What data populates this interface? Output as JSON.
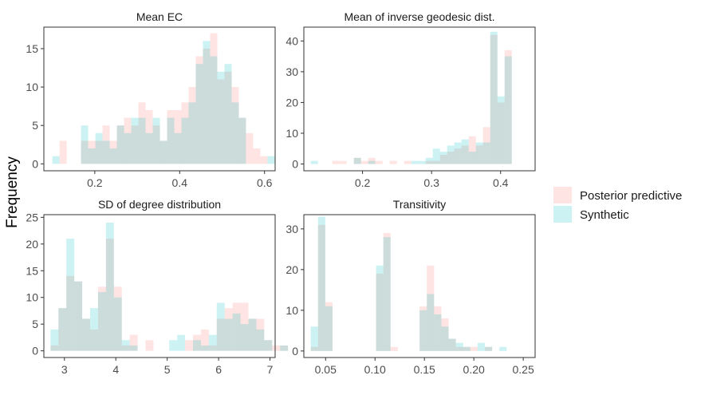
{
  "chart_data": {
    "type": "histogram",
    "ylabel": "Frequency",
    "legend": {
      "position": "right",
      "entries": [
        {
          "name": "Posterior predictive",
          "color": "#F8766D"
        },
        {
          "name": "Synthetic",
          "color": "#00BFC4"
        }
      ]
    },
    "panels": [
      {
        "title": "Mean EC",
        "xlim": [
          0.08,
          0.625
        ],
        "ylim": [
          -0.9,
          17.8
        ],
        "xticks": [
          0.2,
          0.4,
          0.6
        ],
        "xtick_labels": [
          "0.2",
          "0.4",
          "0.6"
        ],
        "yticks": [
          0,
          5,
          10,
          15
        ],
        "ytick_labels": [
          "0",
          "5",
          "10",
          "15"
        ],
        "bin_start": 0.1,
        "bin_width": 0.0169,
        "series": [
          {
            "name": "Posterior predictive",
            "values": [
              0,
              3,
              0,
              0,
              3,
              3,
              3,
              5,
              3,
              5,
              6,
              5,
              8,
              7,
              5,
              3,
              7,
              7,
              8,
              10,
              14,
              15,
              17,
              11,
              12,
              10,
              6,
              4,
              2,
              1,
              0
            ]
          },
          {
            "name": "Synthetic",
            "values": [
              1,
              0,
              0,
              0,
              5,
              2,
              4,
              3,
              2,
              5,
              4,
              6,
              6,
              4,
              6,
              3,
              6,
              4,
              6,
              8,
              13,
              16,
              14,
              12,
              13,
              8,
              6,
              0,
              0,
              0,
              1
            ]
          }
        ]
      },
      {
        "title": "Mean of inverse geodesic dist.",
        "xlim": [
          0.115,
          0.45
        ],
        "ylim": [
          -2.2,
          44.5
        ],
        "xticks": [
          0.2,
          0.3,
          0.4
        ],
        "xtick_labels": [
          "0.2",
          "0.3",
          "0.4"
        ],
        "yticks": [
          0,
          10,
          20,
          30,
          40
        ],
        "ytick_labels": [
          "0",
          "10",
          "20",
          "30",
          "40"
        ],
        "bin_start": 0.125,
        "bin_width": 0.0104,
        "series": [
          {
            "name": "Posterior predictive",
            "values": [
              0,
              0,
              0,
              1,
              1,
              0,
              2,
              1,
              2,
              1,
              0,
              1,
              0,
              1,
              0,
              0,
              1,
              1,
              3,
              4,
              5,
              6,
              9,
              6,
              12,
              42,
              20,
              37
            ]
          },
          {
            "name": "Synthetic",
            "values": [
              1,
              0,
              0,
              0,
              0,
              0,
              2,
              0,
              1,
              0,
              0,
              0,
              0,
              0,
              1,
              1,
              2,
              5,
              4,
              6,
              7,
              8,
              4,
              7,
              7,
              43,
              22,
              35
            ]
          }
        ]
      },
      {
        "title": "SD of degree distribution",
        "xlim": [
          2.6,
          7.1
        ],
        "ylim": [
          -1.25,
          25.5
        ],
        "xticks": [
          3,
          4,
          5,
          6,
          7
        ],
        "xtick_labels": [
          "3",
          "4",
          "5",
          "6",
          "7"
        ],
        "yticks": [
          0,
          5,
          10,
          15,
          20,
          25
        ],
        "ytick_labels": [
          "0",
          "5",
          "10",
          "15",
          "20",
          "25"
        ],
        "bin_start": 2.73,
        "bin_width": 0.154,
        "series": [
          {
            "name": "Posterior predictive",
            "values": [
              1,
              8,
              14,
              13,
              6,
              4,
              12,
              21,
              12,
              1,
              3,
              0,
              2,
              0,
              0,
              0,
              0,
              2,
              3,
              4,
              1,
              6,
              8,
              9,
              9,
              6,
              6,
              2,
              1,
              1
            ]
          },
          {
            "name": "Synthetic",
            "values": [
              4,
              8,
              21,
              13,
              6,
              8,
              11,
              24,
              10,
              2,
              1,
              0,
              0,
              0,
              0,
              2,
              3,
              0,
              2,
              1,
              3,
              9,
              6,
              7,
              5,
              6,
              4,
              2,
              0,
              1
            ]
          }
        ]
      },
      {
        "title": "Transitivity",
        "xlim": [
          0.028,
          0.262
        ],
        "ylim": [
          -1.6,
          33.5
        ],
        "xticks": [
          0.05,
          0.1,
          0.15,
          0.2,
          0.25
        ],
        "xtick_labels": [
          "0.05",
          "0.10",
          "0.15",
          "0.20",
          "0.25"
        ],
        "yticks": [
          0,
          10,
          20,
          30
        ],
        "ytick_labels": [
          "0",
          "10",
          "20",
          "30"
        ],
        "bin_start": 0.035,
        "bin_width": 0.00734,
        "series": [
          {
            "name": "Posterior predictive",
            "values": [
              1,
              31,
              12,
              0,
              0,
              0,
              0,
              0,
              0,
              19,
              29,
              1,
              0,
              0,
              0,
              11,
              21,
              11,
              8,
              3,
              1,
              1,
              1,
              0,
              1,
              0,
              0
            ]
          },
          {
            "name": "Synthetic",
            "values": [
              6,
              33,
              11,
              0,
              0,
              0,
              0,
              0,
              0,
              21,
              28,
              0,
              0,
              0,
              0,
              10,
              14,
              9,
              6,
              3,
              2,
              1,
              0,
              2,
              1,
              0,
              1
            ]
          }
        ]
      }
    ]
  }
}
